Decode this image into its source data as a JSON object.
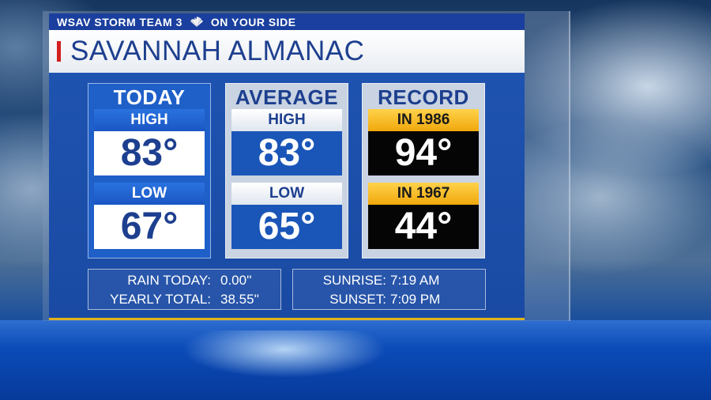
{
  "header": {
    "station": "WSAV STORM TEAM 3",
    "tagline": "ON YOUR SIDE"
  },
  "title": "SAVANNAH ALMANAC",
  "columns": {
    "today": {
      "title": "TODAY",
      "high_label": "HIGH",
      "high_value": "83°",
      "low_label": "LOW",
      "low_value": "67°"
    },
    "average": {
      "title": "AVERAGE",
      "high_label": "HIGH",
      "high_value": "83°",
      "low_label": "LOW",
      "low_value": "65°"
    },
    "record": {
      "title": "RECORD",
      "high_label": "IN 1986",
      "high_value": "94°",
      "low_label": "IN 1967",
      "low_value": "44°"
    }
  },
  "rain": {
    "today_label": "RAIN TODAY:",
    "today_value": "0.00''",
    "yearly_label": "YEARLY TOTAL:",
    "yearly_value": "38.55''"
  },
  "sun": {
    "sunrise_label": "SUNRISE:",
    "sunrise_value": "7:19 AM",
    "sunset_label": "SUNSET:",
    "sunset_value": "7:09 PM"
  },
  "colors": {
    "brand_blue": "#1d3f8f",
    "accent_red": "#d21f1f",
    "record_gold": "#f0a80c"
  }
}
